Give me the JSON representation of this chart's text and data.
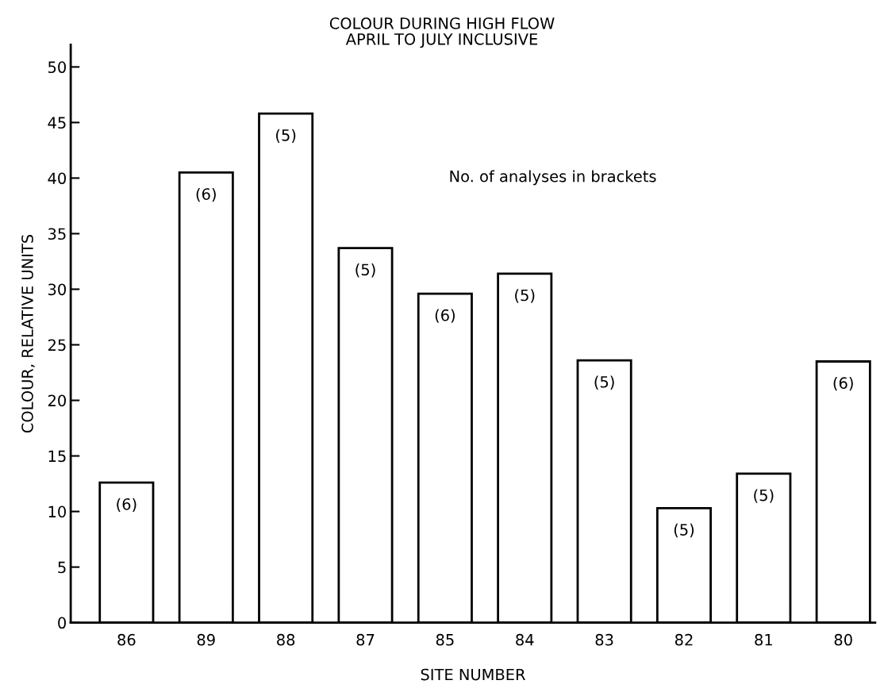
{
  "chart_data": {
    "type": "bar",
    "title": "COLOUR DURING HIGH FLOW",
    "subtitle": "APRIL TO JULY INCLUSIVE",
    "xlabel": "SITE NUMBER",
    "ylabel": "COLOUR, RELATIVE UNITS",
    "categories": [
      "86",
      "89",
      "88",
      "87",
      "85",
      "84",
      "83",
      "82",
      "81",
      "80"
    ],
    "values": [
      12.6,
      40.5,
      45.8,
      33.7,
      29.6,
      31.4,
      23.6,
      10.3,
      13.4,
      23.5
    ],
    "color": "#ffffff",
    "ylim": [
      0,
      52
    ],
    "yticks": [
      0,
      5,
      10,
      15,
      20,
      25,
      30,
      35,
      40,
      45,
      50
    ],
    "grid": false,
    "annotations": [
      "No. of analyses in brackets",
      {
        "text": "(6)",
        "x": "86",
        "y": 12.6
      },
      {
        "text": "(6)",
        "x": "89",
        "y": 40.5
      },
      {
        "text": "(5)",
        "x": "88",
        "y": 45.8
      },
      {
        "text": "(5)",
        "x": "87",
        "y": 33.7
      },
      {
        "text": "(6)",
        "x": "85",
        "y": 29.6
      },
      {
        "text": "(5)",
        "x": "84",
        "y": 31.4
      },
      {
        "text": "(5)",
        "x": "83",
        "y": 23.6
      },
      {
        "text": "(5)",
        "x": "82",
        "y": 10.3
      },
      {
        "text": "(5)",
        "x": "81",
        "y": 13.4
      },
      {
        "text": "(6)",
        "x": "80",
        "y": 23.5
      }
    ]
  }
}
